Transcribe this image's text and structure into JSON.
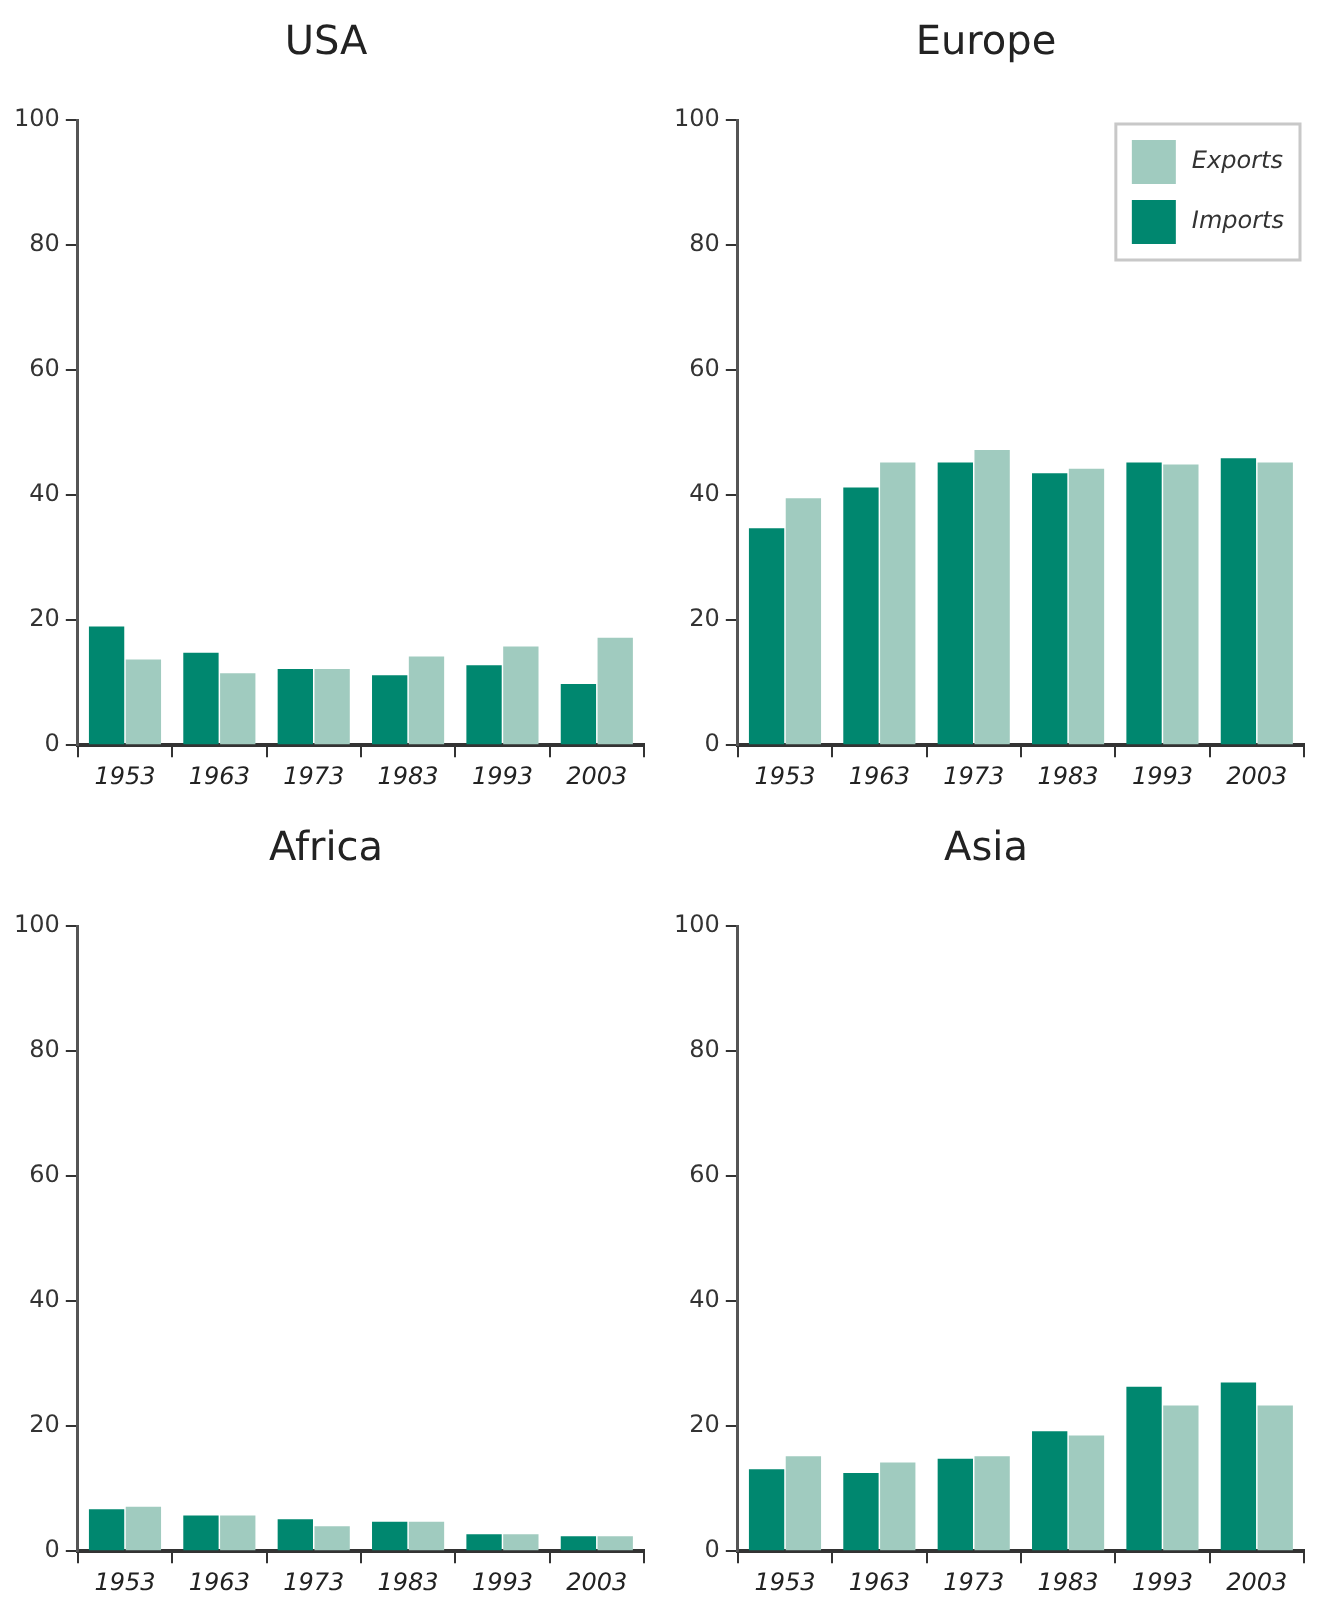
{
  "chart_data": [
    {
      "type": "bar",
      "title": "USA",
      "categories": [
        "1953",
        "1963",
        "1973",
        "1983",
        "1993",
        "2003"
      ],
      "ylim": [
        0,
        100
      ],
      "yticks": [
        0,
        20,
        40,
        60,
        80,
        100
      ],
      "grid": false,
      "legend": false,
      "series": [
        {
          "color": "#00876f",
          "values": [
            19,
            14.8,
            12.2,
            11.2,
            12.8,
            9.8
          ]
        },
        {
          "color": "#a0cbbf",
          "values": [
            13.7,
            11.5,
            12.2,
            14.2,
            15.8,
            17.2
          ]
        }
      ]
    },
    {
      "type": "bar",
      "title": "Europe",
      "categories": [
        "1953",
        "1963",
        "1973",
        "1983",
        "1993",
        "2003"
      ],
      "ylim": [
        0,
        100
      ],
      "yticks": [
        0,
        20,
        40,
        60,
        80,
        100
      ],
      "grid": false,
      "legend": "top right",
      "series": [
        {
          "name": "Imports",
          "color": "#00876f",
          "values": [
            34.7,
            41.2,
            45.2,
            43.5,
            45.2,
            45.9
          ]
        },
        {
          "name": "Exports",
          "color": "#a0cbbf",
          "values": [
            39.5,
            45.2,
            47.2,
            44.2,
            44.9,
            45.2
          ]
        }
      ]
    },
    {
      "type": "bar",
      "title": "Africa",
      "categories": [
        "1953",
        "1963",
        "1973",
        "1983",
        "1993",
        "2003"
      ],
      "ylim": [
        0,
        100
      ],
      "yticks": [
        0,
        20,
        40,
        60,
        80,
        100
      ],
      "grid": false,
      "legend": false,
      "series": [
        {
          "color": "#00876f",
          "values": [
            6.7,
            5.7,
            5.1,
            4.7,
            2.7,
            2.4
          ]
        },
        {
          "color": "#a0cbbf",
          "values": [
            7.1,
            5.7,
            4.0,
            4.7,
            2.7,
            2.4
          ]
        }
      ]
    },
    {
      "type": "bar",
      "title": "Asia",
      "categories": [
        "1953",
        "1963",
        "1973",
        "1983",
        "1993",
        "2003"
      ],
      "ylim": [
        0,
        100
      ],
      "yticks": [
        0,
        20,
        40,
        60,
        80,
        100
      ],
      "grid": false,
      "legend": false,
      "series": [
        {
          "color": "#00876f",
          "values": [
            13.1,
            12.5,
            14.8,
            19.2,
            26.3,
            27.0
          ]
        },
        {
          "color": "#a0cbbf",
          "values": [
            15.2,
            14.2,
            15.2,
            18.5,
            23.3,
            23.3
          ]
        }
      ]
    }
  ]
}
